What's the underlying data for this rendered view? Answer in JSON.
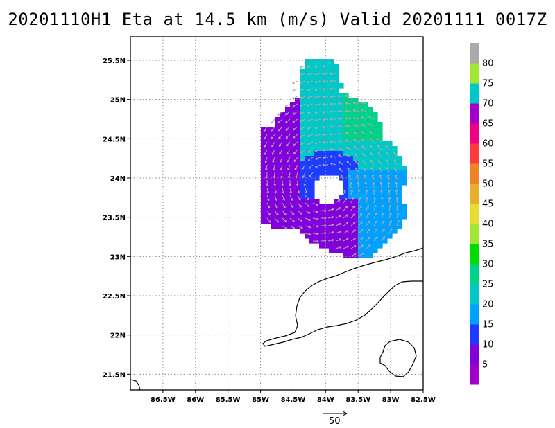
{
  "title": "20201110H1 Eta at 14.5 km (m/s) Valid 20201111 0017Z",
  "map": {
    "lon_range": [
      -87.0,
      -82.5
    ],
    "lat_range": [
      21.3,
      25.8
    ],
    "x_ticks": [
      "86.5W",
      "86W",
      "85.5W",
      "85W",
      "84.5W",
      "84W",
      "83.5W",
      "83W",
      "82.5W"
    ],
    "x_tick_values": [
      -86.5,
      -86.0,
      -85.5,
      -85.0,
      -84.5,
      -84.0,
      -83.5,
      -83.0,
      -82.5
    ],
    "y_ticks": [
      "21.5N",
      "22N",
      "22.5N",
      "23N",
      "23.5N",
      "24N",
      "24.5N",
      "25N",
      "25.5N"
    ],
    "y_tick_values": [
      21.5,
      22.0,
      22.5,
      23.0,
      23.5,
      24.0,
      24.5,
      25.0,
      25.5
    ],
    "gridlines": true,
    "storm_center": [
      -84.0,
      23.9
    ]
  },
  "colorbar": {
    "labels": [
      "5",
      "10",
      "15",
      "20",
      "25",
      "30",
      "35",
      "40",
      "45",
      "50",
      "55",
      "60",
      "65",
      "70",
      "75",
      "80"
    ],
    "colors": [
      "#a000c8",
      "#8200dc",
      "#1e3cff",
      "#00a0ff",
      "#00c8c8",
      "#00d28c",
      "#00dc00",
      "#a0e632",
      "#e6dc32",
      "#e6af2d",
      "#f08228",
      "#fa3c3c",
      "#f00082",
      "#a000c8",
      "#00c8c8",
      "#a0e632",
      "#aaaaaa"
    ]
  },
  "reference_vector": {
    "label": "50"
  },
  "colors": {
    "vector": "#aaaaaa",
    "coast": "#000000",
    "grid": "#888888"
  }
}
